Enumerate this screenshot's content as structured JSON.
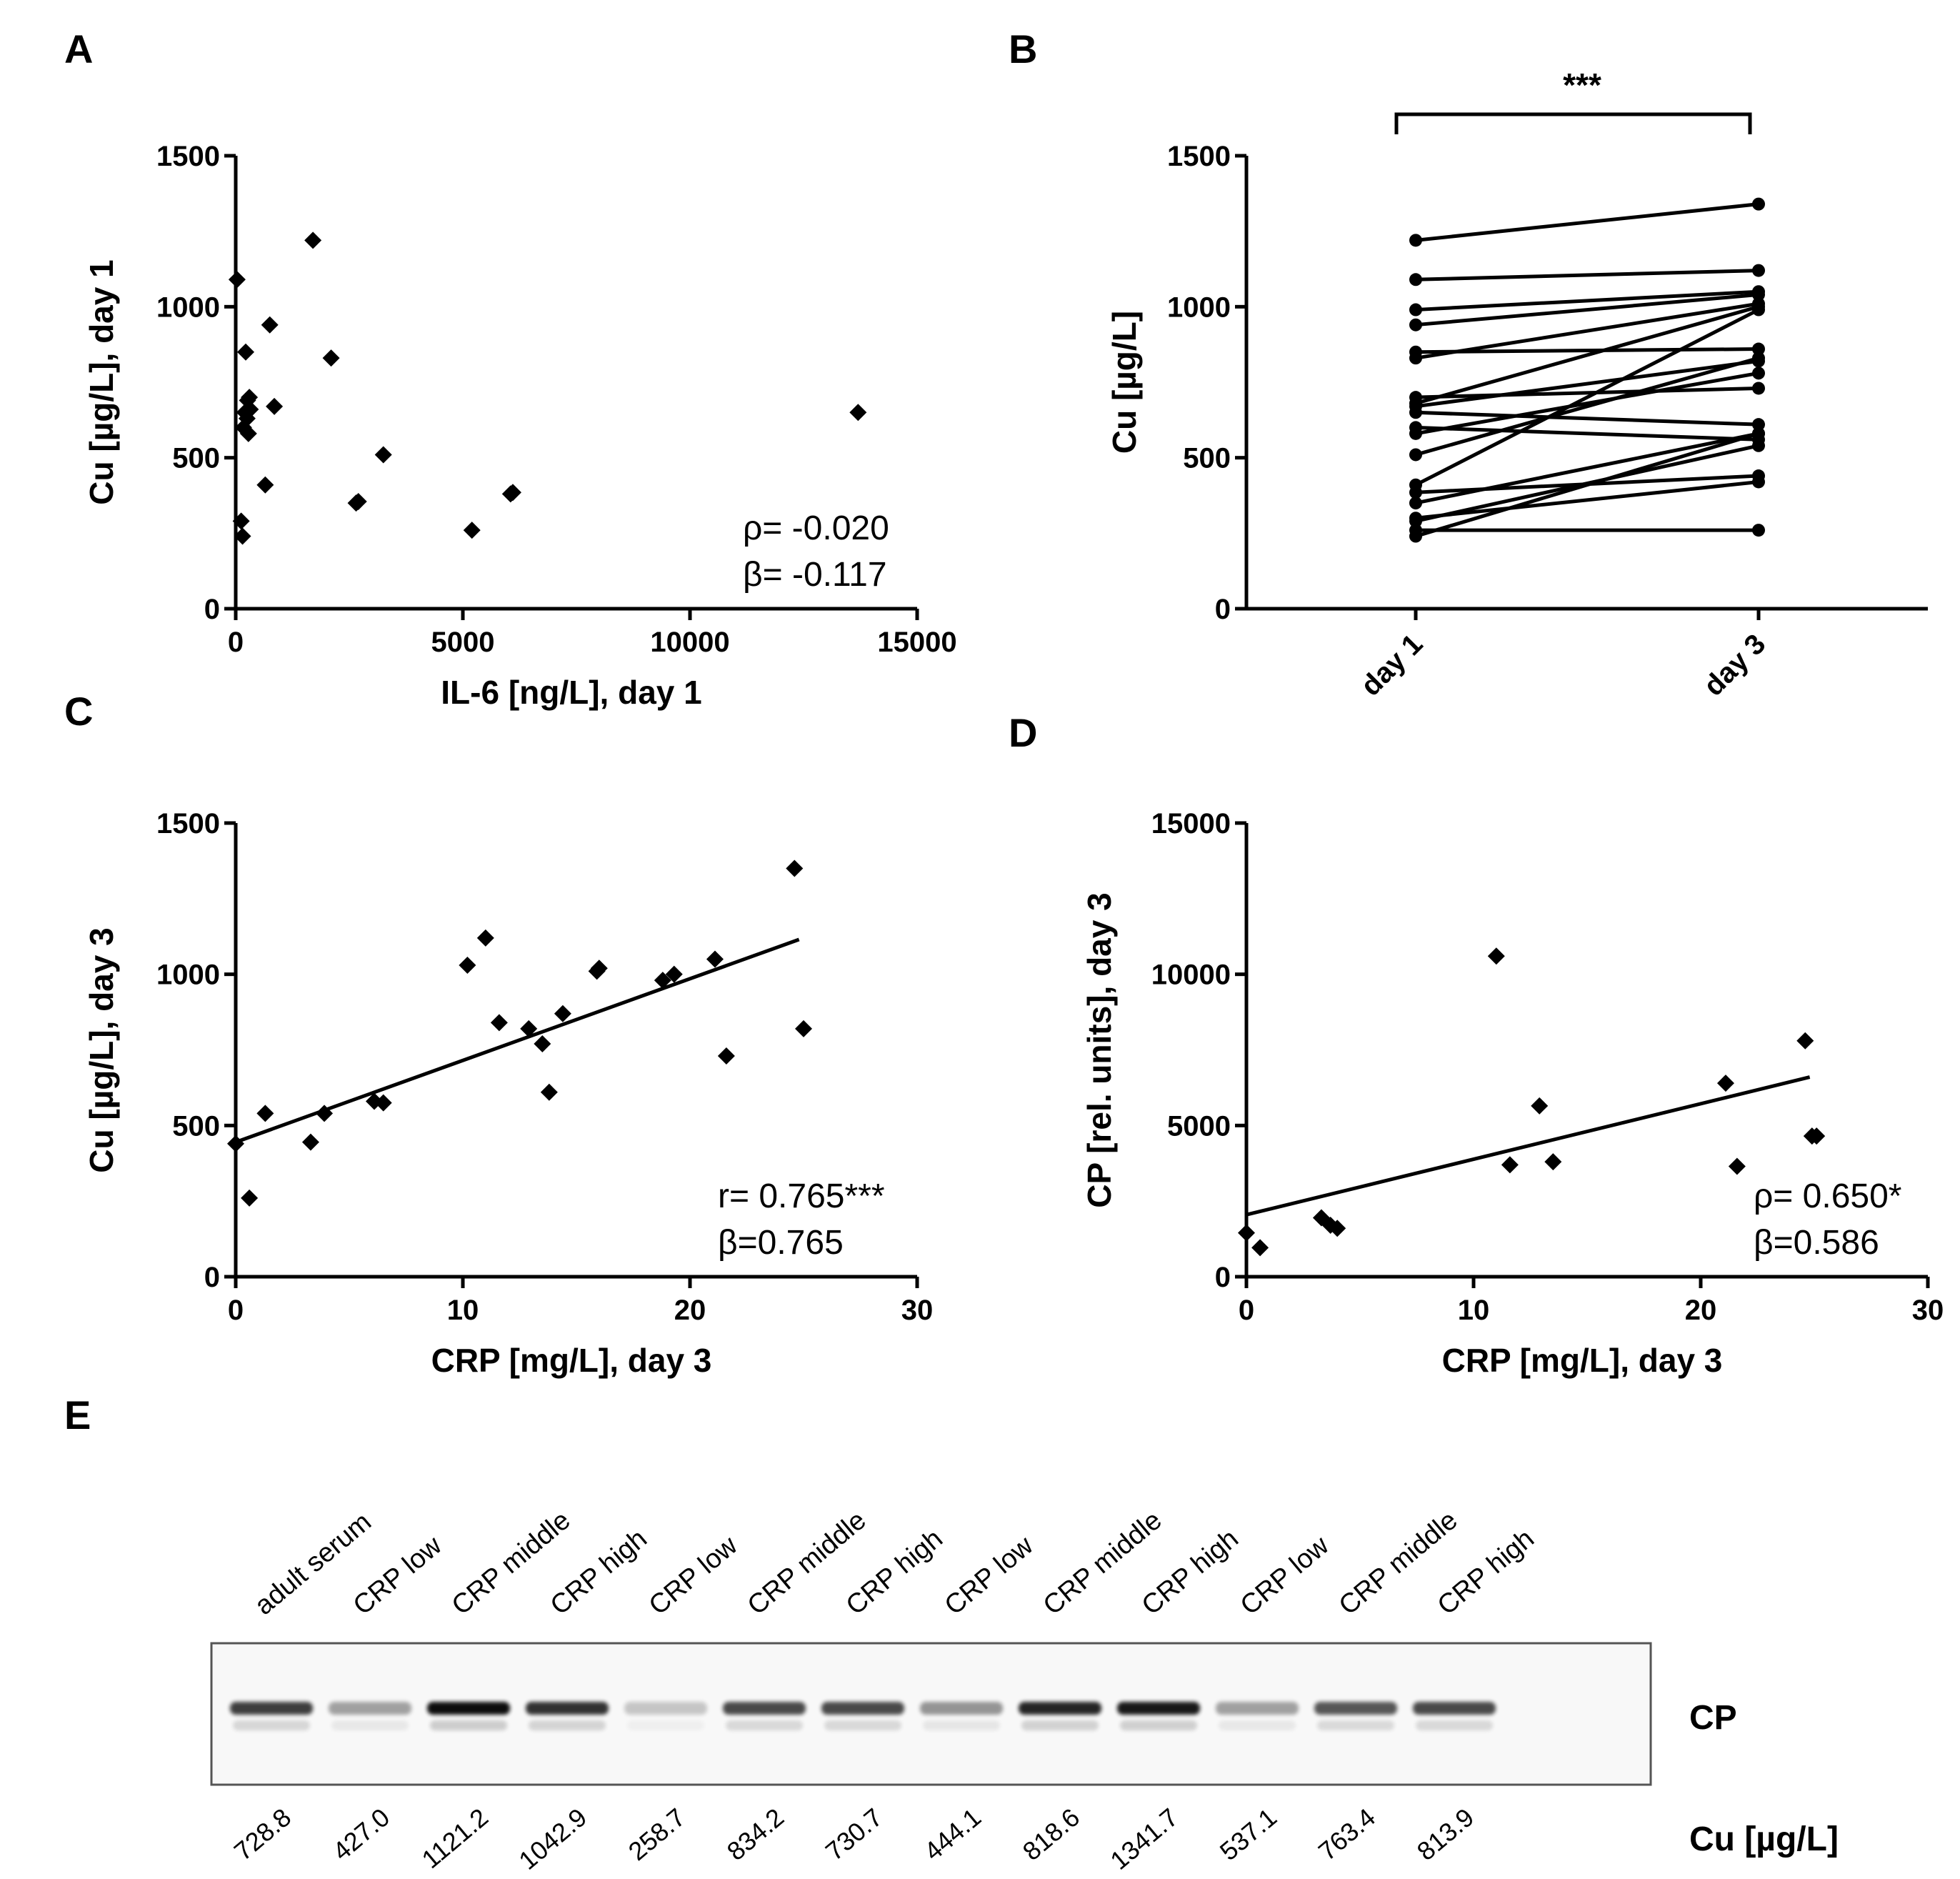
{
  "panels": {
    "A": {
      "letter": "A",
      "chart_data": {
        "type": "scatter",
        "xlabel": "IL-6 [ng/L], day 1",
        "ylabel": "Cu [µg/L], day 1",
        "xlim": [
          0,
          15000
        ],
        "ylim": [
          0,
          1500
        ],
        "xticks": [
          0,
          5000,
          10000,
          15000
        ],
        "yticks": [
          0,
          500,
          1000,
          1500
        ],
        "x": [
          30,
          120,
          150,
          170,
          200,
          220,
          250,
          260,
          280,
          300,
          320,
          650,
          750,
          850,
          1700,
          2100,
          2650,
          2700,
          3250,
          5200,
          6050,
          6100,
          13700
        ],
        "y": [
          1090,
          290,
          240,
          600,
          650,
          850,
          630,
          690,
          580,
          700,
          660,
          410,
          940,
          670,
          1220,
          830,
          350,
          355,
          510,
          260,
          380,
          385,
          650
        ],
        "annotations": [
          "ρ= -0.020",
          "β= -0.117"
        ]
      }
    },
    "B": {
      "letter": "B",
      "chart_data": {
        "type": "line",
        "categories": [
          "day 1",
          "day 3"
        ],
        "ylabel": "Cu [µg/L]",
        "ylim": [
          0,
          1500
        ],
        "yticks": [
          0,
          500,
          1000,
          1500
        ],
        "significance": "***",
        "series": [
          {
            "values": [
              1220,
              1340
            ]
          },
          {
            "values": [
              1090,
              1120
            ]
          },
          {
            "values": [
              990,
              1050
            ]
          },
          {
            "values": [
              940,
              1040
            ]
          },
          {
            "values": [
              850,
              860
            ]
          },
          {
            "values": [
              830,
              1010
            ]
          },
          {
            "values": [
              700,
              730
            ]
          },
          {
            "values": [
              680,
              1000
            ]
          },
          {
            "values": [
              670,
              820
            ]
          },
          {
            "values": [
              650,
              610
            ]
          },
          {
            "values": [
              600,
              560
            ]
          },
          {
            "values": [
              580,
              780
            ]
          },
          {
            "values": [
              510,
              830
            ]
          },
          {
            "values": [
              410,
              990
            ]
          },
          {
            "values": [
              385,
              440
            ]
          },
          {
            "values": [
              350,
              580
            ]
          },
          {
            "values": [
              300,
              420
            ]
          },
          {
            "values": [
              290,
              540
            ]
          },
          {
            "values": [
              260,
              260
            ]
          },
          {
            "values": [
              240,
              580
            ]
          }
        ]
      }
    },
    "C": {
      "letter": "C",
      "chart_data": {
        "type": "scatter",
        "xlabel": "CRP [mg/L], day 3",
        "ylabel": "Cu [µg/L], day 3",
        "xlim": [
          0,
          30
        ],
        "ylim": [
          0,
          1500
        ],
        "xticks": [
          0,
          10,
          20,
          30
        ],
        "yticks": [
          0,
          500,
          1000,
          1500
        ],
        "x": [
          0,
          0.6,
          1.3,
          3.3,
          3.9,
          6.1,
          6.5,
          10.2,
          11.0,
          11.6,
          12.9,
          13.5,
          13.8,
          14.4,
          15.9,
          16.0,
          18.8,
          19.3,
          21.1,
          21.6,
          24.6,
          25.0
        ],
        "y": [
          440,
          260,
          540,
          445,
          540,
          580,
          575,
          1030,
          1120,
          840,
          820,
          770,
          610,
          870,
          1010,
          1020,
          980,
          1000,
          1050,
          730,
          1350,
          820
        ],
        "trendline": {
          "x": [
            0,
            24.8
          ],
          "y": [
            445,
            1115
          ]
        },
        "annotations": [
          "r= 0.765***",
          "β=0.765"
        ]
      }
    },
    "D": {
      "letter": "D",
      "chart_data": {
        "type": "scatter",
        "xlabel": "CRP [mg/L], day 3",
        "ylabel": "CP [rel. units], day 3",
        "xlim": [
          0,
          30
        ],
        "ylim": [
          0,
          15000
        ],
        "xticks": [
          0,
          10,
          20,
          30
        ],
        "yticks": [
          0,
          5000,
          10000,
          15000
        ],
        "x": [
          0,
          0.6,
          3.3,
          3.7,
          4.0,
          11.0,
          11.6,
          12.9,
          13.5,
          21.1,
          21.6,
          24.6,
          24.9,
          25.1
        ],
        "y": [
          1450,
          960,
          1950,
          1700,
          1600,
          10600,
          3700,
          5650,
          3800,
          6400,
          3650,
          7800,
          4650,
          4650
        ],
        "trendline": {
          "x": [
            0,
            24.8
          ],
          "y": [
            2050,
            6600
          ]
        },
        "annotations": [
          "ρ= 0.650*",
          "β=0.586"
        ]
      }
    },
    "E": {
      "letter": "E",
      "lanes": [
        "adult serum",
        "CRP low",
        "CRP middle",
        "CRP high",
        "CRP low",
        "CRP middle",
        "CRP high",
        "CRP low",
        "CRP middle",
        "CRP high",
        "CRP low",
        "CRP middle",
        "CRP high"
      ],
      "cu_values": [
        "728.8",
        "427.0",
        "1121.2",
        "1042.9",
        "258.7",
        "834.2",
        "730.7",
        "444.1",
        "818.6",
        "1341.7",
        "537.1",
        "763.4",
        "813.9"
      ],
      "band_label": "CP",
      "cu_label": "Cu [µg/L]"
    }
  }
}
